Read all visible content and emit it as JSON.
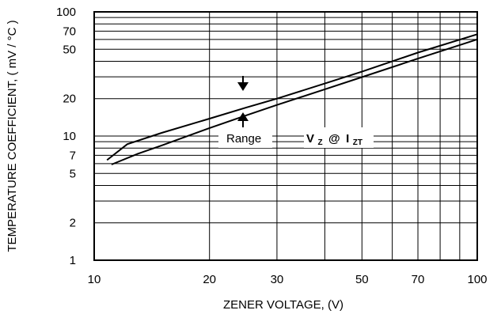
{
  "chart_data": {
    "type": "line",
    "title": "",
    "xlabel": "ZENER VOLTAGE, (V)",
    "ylabel": "TEMPERATURE COEFFICIENT, ( mV / °C )",
    "x_scale": "log",
    "y_scale": "log",
    "xlim": [
      10,
      100
    ],
    "ylim": [
      1,
      100
    ],
    "x_ticks": [
      10,
      20,
      30,
      50,
      70,
      100
    ],
    "x_tick_labels": [
      "10",
      "20",
      "30",
      "50",
      "70",
      "100"
    ],
    "y_ticks": [
      1,
      2,
      5,
      7,
      10,
      20,
      50,
      70,
      100
    ],
    "y_tick_labels": [
      "1",
      "2",
      "5",
      "7",
      "10",
      "20",
      "50",
      "70",
      "100"
    ],
    "grid": true,
    "series": [
      {
        "x": [
          10.8,
          12.2,
          15,
          20,
          25,
          30,
          40,
          50,
          70,
          100
        ],
        "y": [
          6.4,
          8.6,
          10.6,
          13.8,
          17,
          20,
          26.5,
          33,
          47,
          66
        ]
      },
      {
        "x": [
          11.1,
          13,
          15,
          20,
          25,
          30,
          40,
          50,
          70,
          100
        ],
        "y": [
          5.9,
          7.2,
          8.4,
          11.6,
          14.7,
          17.8,
          23.8,
          29.8,
          42,
          60
        ]
      }
    ],
    "annotations": {
      "range_label": "Range",
      "vz_main": "V",
      "vz_sub": "Z",
      "at_sign": "@",
      "izt_main": "I",
      "izt_sub": "ZT"
    }
  }
}
